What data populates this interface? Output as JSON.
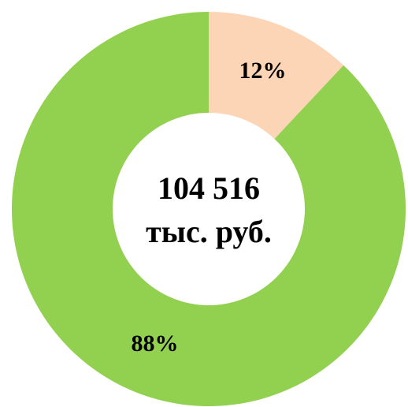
{
  "chart_data": {
    "type": "donut",
    "values": [
      12,
      88
    ],
    "value_labels": [
      "12%",
      "88%"
    ],
    "colors": [
      "#fbd5b5",
      "#92d050"
    ],
    "center_label": [
      "104 516",
      "тыс. руб."
    ]
  }
}
